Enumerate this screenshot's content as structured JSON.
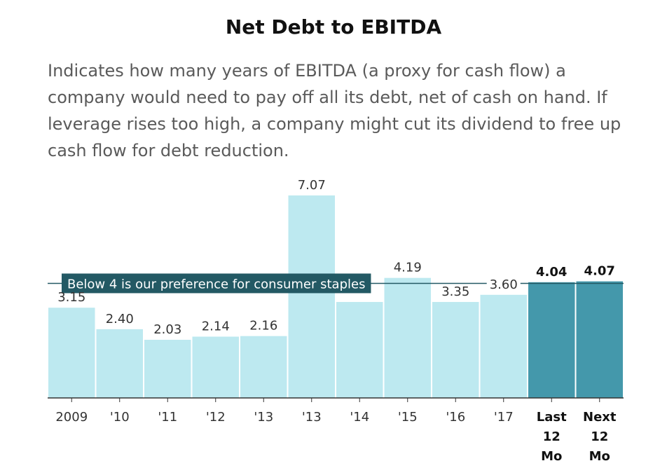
{
  "header": {
    "title": "Net Debt to EBITDA",
    "subtitle": "Indicates how many years of EBITDA (a proxy for cash flow) a company would need to pay off all its debt, net of cash on hand. If leverage rises too high, a company might cut its dividend to free up cash flow for debt reduction."
  },
  "chart_data": {
    "type": "bar",
    "title": "Net Debt to EBITDA",
    "xlabel": "",
    "ylabel": "",
    "ylim": [
      0,
      7.9
    ],
    "grid": false,
    "categories": [
      "2009",
      "'10",
      "'11",
      "'12",
      "'13",
      "'13",
      "'14",
      "'15",
      "'16",
      "'17",
      "Last 12 Mo",
      "Next 12 Mo"
    ],
    "category_label_lines": [
      [
        "2009"
      ],
      [
        "'10"
      ],
      [
        "'11"
      ],
      [
        "'12"
      ],
      [
        "'13"
      ],
      [
        "'13"
      ],
      [
        "'14"
      ],
      [
        "'15"
      ],
      [
        "'16"
      ],
      [
        "'17"
      ],
      [
        "Last",
        "12",
        "Mo"
      ],
      [
        "Next",
        "12",
        "Mo"
      ]
    ],
    "values": [
      3.15,
      2.4,
      2.03,
      2.14,
      2.16,
      7.07,
      3.35,
      4.19,
      3.35,
      3.6,
      4.04,
      4.07
    ],
    "value_labels": [
      "3.15",
      "2.40",
      "2.03",
      "2.14",
      "2.16",
      "7.07",
      "",
      "4.19",
      "3.35",
      "3.60",
      "4.04",
      "4.07"
    ],
    "highlighted": [
      false,
      false,
      false,
      false,
      false,
      false,
      false,
      false,
      false,
      false,
      true,
      true
    ],
    "reference_line": {
      "value": 4,
      "label": "Below 4 is our preference for consumer staples"
    },
    "colors": {
      "bar": "#bde9f0",
      "bar_highlight": "#4498ab",
      "reference_label_bg": "#235964",
      "reference_line": "#235964",
      "axis": "#333333",
      "text": "#333333"
    }
  }
}
